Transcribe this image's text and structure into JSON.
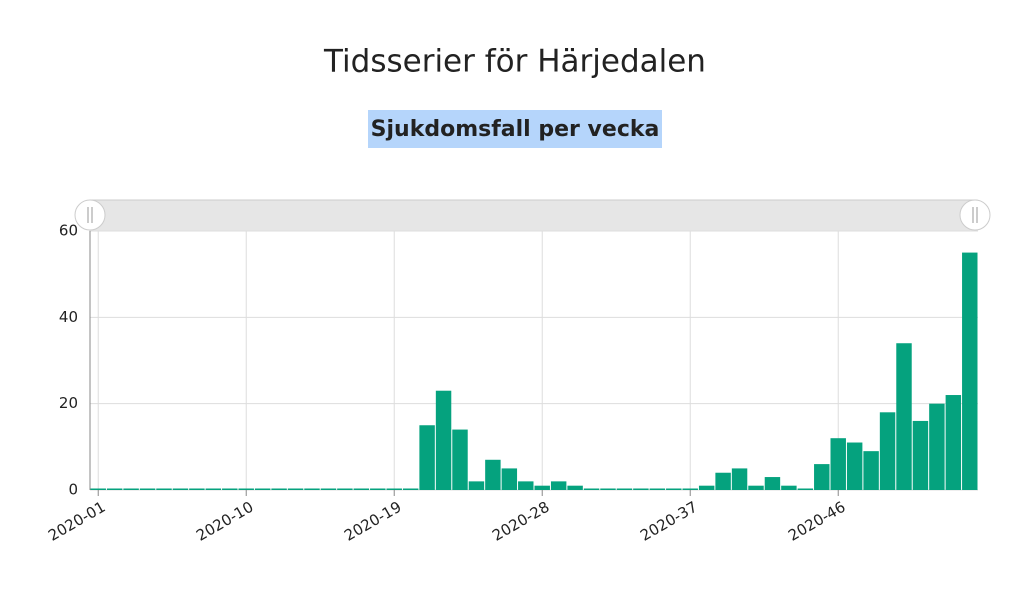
{
  "chart_data": {
    "type": "bar",
    "title": "Tidsserier för Härjedalen",
    "subtitle": "Sjukdomsfall per vecka",
    "categories": [
      "2020-01",
      null,
      null,
      null,
      null,
      null,
      null,
      null,
      null,
      "2020-10",
      null,
      null,
      null,
      null,
      null,
      null,
      null,
      null,
      "2020-19",
      null,
      null,
      null,
      null,
      null,
      null,
      null,
      null,
      "2020-28",
      null,
      null,
      null,
      null,
      null,
      null,
      null,
      null,
      "2020-37",
      null,
      null,
      null,
      null,
      null,
      null,
      null,
      null,
      "2020-46",
      null,
      null,
      null,
      null,
      null,
      null,
      null,
      null
    ],
    "values": [
      0,
      0,
      0,
      0,
      0,
      0,
      0,
      0,
      0,
      0,
      0,
      0,
      0,
      0,
      0,
      0,
      0,
      0,
      0,
      0,
      15,
      23,
      14,
      2,
      7,
      5,
      2,
      1,
      2,
      1,
      0,
      0,
      0,
      0,
      0,
      0,
      0,
      1,
      4,
      5,
      1,
      3,
      1,
      0,
      6,
      12,
      11,
      9,
      18,
      34,
      16,
      20,
      22,
      55
    ],
    "color": "#05a27e",
    "ylim": [
      0,
      60
    ],
    "yticks": [
      0,
      20,
      40,
      60
    ],
    "grid": true
  }
}
